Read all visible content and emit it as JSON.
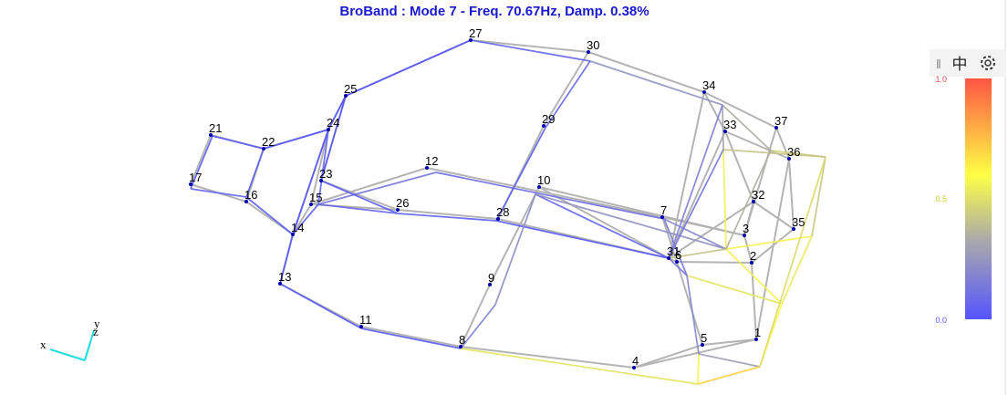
{
  "header": {
    "title": "BroBand : Mode  7 - Freq. 70.67Hz, Damp.  0.38%"
  },
  "toolbar": {
    "language": "中"
  },
  "colorbar": {
    "labels": [
      "1.0",
      "0.5",
      "0.0"
    ]
  },
  "axes": {
    "x": "x",
    "y": "y",
    "z": "z"
  },
  "nodes": [
    {
      "label": "1"
    },
    {
      "label": "2"
    },
    {
      "label": "3"
    },
    {
      "label": "4"
    },
    {
      "label": "5"
    },
    {
      "label": "6"
    },
    {
      "label": "7"
    },
    {
      "label": "8"
    },
    {
      "label": "9"
    },
    {
      "label": "10"
    },
    {
      "label": "11"
    },
    {
      "label": "12"
    },
    {
      "label": "13"
    },
    {
      "label": "14"
    },
    {
      "label": "15"
    },
    {
      "label": "16"
    },
    {
      "label": "17"
    },
    {
      "label": "21"
    },
    {
      "label": "22"
    },
    {
      "label": "23"
    },
    {
      "label": "24"
    },
    {
      "label": "25"
    },
    {
      "label": "26"
    },
    {
      "label": "27"
    },
    {
      "label": "28"
    },
    {
      "label": "29"
    },
    {
      "label": "30"
    },
    {
      "label": "31"
    },
    {
      "label": "32"
    },
    {
      "label": "33"
    },
    {
      "label": "34"
    },
    {
      "label": "35"
    },
    {
      "label": "36"
    },
    {
      "label": "37"
    }
  ]
}
